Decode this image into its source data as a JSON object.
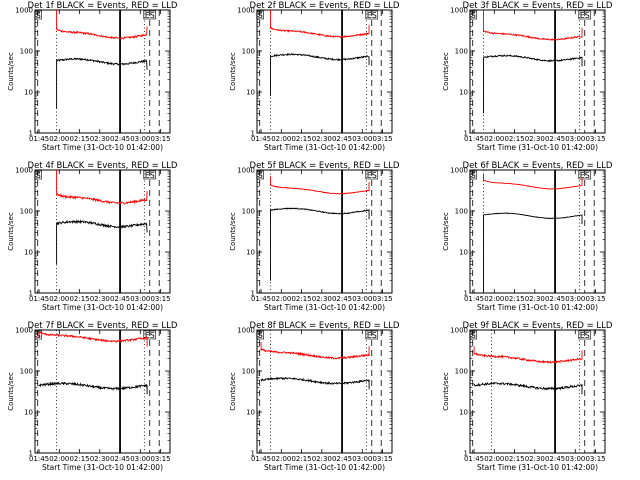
{
  "figure": {
    "x_axis_label": "Start Time (31-Oct-10 01:42:00)",
    "y_axis_label": "Counts/sec",
    "legend_marks": [
      "S",
      "ES"
    ],
    "colors": {
      "events": "#000000",
      "lld": "#ff0000",
      "background": "#ffffff"
    }
  },
  "chart_data": [
    {
      "type": "line",
      "title": "Det 1f BLACK = Events, RED = LLD",
      "y_scale": "log",
      "ylim": [
        1,
        1000
      ],
      "y_ticks": [
        "1",
        "10",
        "100",
        "1000"
      ],
      "x_ticks": [
        "01:45",
        "02:00",
        "02:15",
        "02:30",
        "02:45",
        "03:00",
        "03:15"
      ],
      "events_start": "01:58",
      "events_end": "03:05",
      "vertical_lines": {
        "dashed": [
          "01:44",
          "03:07",
          "03:14"
        ],
        "dotted": [
          "01:58",
          "03:03"
        ],
        "solid": [
          "02:45"
        ]
      },
      "series": [
        {
          "name": "BLACK = Events",
          "level": 58,
          "noise": 0.05,
          "start_spike": 4
        },
        {
          "name": "RED = LLD",
          "level": 250,
          "noise": 0.05,
          "start_spike": 1000
        }
      ]
    },
    {
      "type": "line",
      "title": "Det 2f BLACK = Events, RED = LLD",
      "y_scale": "log",
      "ylim": [
        1,
        1000
      ],
      "y_ticks": [
        "1",
        "10",
        "100",
        "1000"
      ],
      "x_ticks": [
        "01:45",
        "02:00",
        "02:15",
        "02:30",
        "02:45",
        "03:00",
        "03:15"
      ],
      "events_start": "01:52",
      "events_end": "03:05",
      "vertical_lines": {
        "dashed": [
          "01:44",
          "03:07",
          "03:14"
        ],
        "dotted": [
          "01:52",
          "03:03"
        ],
        "solid": [
          "02:45"
        ]
      },
      "series": [
        {
          "name": "BLACK = Events",
          "level": 75,
          "noise": 0.04,
          "start_spike": 8
        },
        {
          "name": "RED = LLD",
          "level": 270,
          "noise": 0.04,
          "start_spike": 1000
        }
      ]
    },
    {
      "type": "line",
      "title": "Det 3f BLACK = Events, RED = LLD",
      "y_scale": "log",
      "ylim": [
        1,
        1000
      ],
      "y_ticks": [
        "1",
        "10",
        "100",
        "1000"
      ],
      "x_ticks": [
        "01:45",
        "02:00",
        "02:15",
        "02:30",
        "02:45",
        "03:00",
        "03:15"
      ],
      "events_start": "01:52",
      "events_end": "03:05",
      "vertical_lines": {
        "dashed": [
          "01:44",
          "03:07",
          "03:14"
        ],
        "dotted": [
          "01:52",
          "03:03"
        ],
        "solid": [
          "02:45"
        ]
      },
      "series": [
        {
          "name": "BLACK = Events",
          "level": 70,
          "noise": 0.04,
          "start_spike": 3
        },
        {
          "name": "RED = LLD",
          "level": 230,
          "noise": 0.04,
          "start_spike": 1000
        }
      ]
    },
    {
      "type": "line",
      "title": "Det 4f BLACK = Events, RED = LLD",
      "y_scale": "log",
      "ylim": [
        1,
        1000
      ],
      "y_ticks": [
        "1",
        "10",
        "100",
        "1000"
      ],
      "x_ticks": [
        "01:45",
        "02:00",
        "02:15",
        "02:30",
        "02:45",
        "03:00",
        "03:15"
      ],
      "events_start": "01:58",
      "events_end": "03:05",
      "vertical_lines": {
        "dashed": [
          "01:44",
          "03:07",
          "03:14"
        ],
        "dotted": [
          "01:58",
          "03:03"
        ],
        "solid": [
          "02:45"
        ]
      },
      "series": [
        {
          "name": "BLACK = Events",
          "level": 50,
          "noise": 0.06,
          "start_spike": 5
        },
        {
          "name": "RED = LLD",
          "level": 190,
          "noise": 0.06,
          "start_spike": 1000
        }
      ]
    },
    {
      "type": "line",
      "title": "Det 5f BLACK = Events, RED = LLD",
      "y_scale": "log",
      "ylim": [
        1,
        1000
      ],
      "y_ticks": [
        "1",
        "10",
        "100",
        "1000"
      ],
      "x_ticks": [
        "01:45",
        "02:00",
        "02:15",
        "02:30",
        "02:45",
        "03:00",
        "03:15"
      ],
      "events_start": "01:52",
      "events_end": "03:05",
      "vertical_lines": {
        "dashed": [
          "01:44",
          "03:07",
          "03:14"
        ],
        "dotted": [
          "01:52",
          "03:03"
        ],
        "solid": [
          "02:45"
        ]
      },
      "series": [
        {
          "name": "BLACK = Events",
          "level": 105,
          "noise": 0.025,
          "start_spike": 2
        },
        {
          "name": "RED = LLD",
          "level": 320,
          "noise": 0.02,
          "start_spike": 700
        }
      ]
    },
    {
      "type": "line",
      "title": "Det 6f BLACK = Events, RED = LLD",
      "y_scale": "log",
      "ylim": [
        1,
        1000
      ],
      "y_ticks": [
        "1",
        "10",
        "100",
        "1000"
      ],
      "x_ticks": [
        "01:45",
        "02:00",
        "02:15",
        "02:30",
        "02:45",
        "03:00",
        "03:15"
      ],
      "events_start": "01:52",
      "events_end": "03:05",
      "vertical_lines": {
        "dashed": [
          "01:44",
          "03:07",
          "03:14"
        ],
        "dotted": [
          "01:52",
          "03:03"
        ],
        "solid": [
          "02:45"
        ]
      },
      "series": [
        {
          "name": "BLACK = Events",
          "level": 80,
          "noise": 0.015,
          "start_spike": 1
        },
        {
          "name": "RED = LLD",
          "level": 420,
          "noise": 0.01,
          "start_spike": 800
        }
      ]
    },
    {
      "type": "line",
      "title": "Det 7f BLACK = Events, RED = LLD",
      "y_scale": "log",
      "ylim": [
        1,
        1000
      ],
      "y_ticks": [
        "1",
        "10",
        "100",
        "1000"
      ],
      "x_ticks": [
        "01:45",
        "02:00",
        "02:15",
        "02:30",
        "02:45",
        "03:00",
        "03:15"
      ],
      "events_start": "01:45",
      "events_end": "03:05",
      "vertical_lines": {
        "dashed": [
          "01:44",
          "03:07",
          "03:14"
        ],
        "dotted": [
          "01:58",
          "03:03"
        ],
        "solid": [
          "02:45"
        ]
      },
      "series": [
        {
          "name": "BLACK = Events",
          "level": 45,
          "noise": 0.06,
          "start_spike": 45
        },
        {
          "name": "RED = LLD",
          "level": 650,
          "noise": 0.05,
          "start_spike": 650
        }
      ]
    },
    {
      "type": "line",
      "title": "Det 8f BLACK = Events, RED = LLD",
      "y_scale": "log",
      "ylim": [
        1,
        1000
      ],
      "y_ticks": [
        "1",
        "10",
        "100",
        "1000"
      ],
      "x_ticks": [
        "01:45",
        "02:00",
        "02:15",
        "02:30",
        "02:45",
        "03:00",
        "03:15"
      ],
      "events_start": "01:45",
      "events_end": "03:05",
      "vertical_lines": {
        "dashed": [
          "01:44",
          "03:07",
          "03:14"
        ],
        "dotted": [
          "01:52",
          "03:03"
        ],
        "solid": [
          "02:45"
        ]
      },
      "series": [
        {
          "name": "BLACK = Events",
          "level": 60,
          "noise": 0.05,
          "start_spike": 60
        },
        {
          "name": "RED = LLD",
          "level": 250,
          "noise": 0.05,
          "start_spike": 500
        }
      ]
    },
    {
      "type": "line",
      "title": "Det 9f BLACK = Events, RED = LLD",
      "y_scale": "log",
      "ylim": [
        1,
        1000
      ],
      "y_ticks": [
        "1",
        "10",
        "100",
        "1000"
      ],
      "x_ticks": [
        "01:45",
        "02:00",
        "02:15",
        "02:30",
        "02:45",
        "03:00",
        "03:15"
      ],
      "events_start": "01:45",
      "events_end": "03:05",
      "vertical_lines": {
        "dashed": [
          "01:44",
          "03:07",
          "03:14"
        ],
        "dotted": [
          "01:58",
          "03:03"
        ],
        "solid": [
          "02:45"
        ]
      },
      "series": [
        {
          "name": "BLACK = Events",
          "level": 45,
          "noise": 0.06,
          "start_spike": 45
        },
        {
          "name": "RED = LLD",
          "level": 200,
          "noise": 0.05,
          "start_spike": 400
        }
      ]
    }
  ]
}
